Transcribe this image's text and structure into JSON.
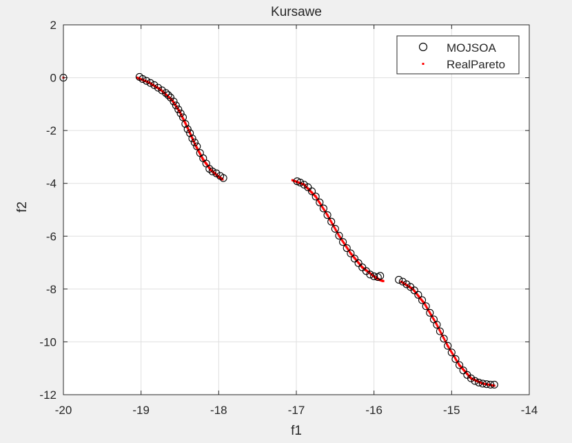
{
  "chart_data": {
    "type": "scatter",
    "title": "Kursawe",
    "xlabel": "f1",
    "ylabel": "f2",
    "xlim": [
      -20,
      -14
    ],
    "ylim": [
      -12,
      2
    ],
    "xticks": [
      -20,
      -19,
      -18,
      -17,
      -16,
      -15,
      -14
    ],
    "yticks": [
      -12,
      -10,
      -8,
      -6,
      -4,
      -2,
      0,
      2
    ],
    "xtick_labels": [
      "-20",
      "-19",
      "-18",
      "-17",
      "-16",
      "-15",
      "-14"
    ],
    "ytick_labels": [
      "-12",
      "-10",
      "-8",
      "-6",
      "-4",
      "-2",
      "0",
      "2"
    ],
    "grid": true,
    "legend_position": "top-right",
    "series": [
      {
        "name": "MOJSOA",
        "marker": "open-circle",
        "color": "#000000",
        "points": [
          [
            -20.0,
            0.0
          ],
          [
            -19.02,
            0.03
          ],
          [
            -18.98,
            -0.05
          ],
          [
            -18.93,
            -0.12
          ],
          [
            -18.88,
            -0.2
          ],
          [
            -18.83,
            -0.28
          ],
          [
            -18.78,
            -0.38
          ],
          [
            -18.73,
            -0.48
          ],
          [
            -18.68,
            -0.58
          ],
          [
            -18.65,
            -0.66
          ],
          [
            -18.62,
            -0.75
          ],
          [
            -18.58,
            -0.9
          ],
          [
            -18.55,
            -1.05
          ],
          [
            -18.52,
            -1.2
          ],
          [
            -18.49,
            -1.35
          ],
          [
            -18.46,
            -1.5
          ],
          [
            -18.43,
            -1.75
          ],
          [
            -18.4,
            -1.95
          ],
          [
            -18.37,
            -2.1
          ],
          [
            -18.34,
            -2.3
          ],
          [
            -18.31,
            -2.45
          ],
          [
            -18.28,
            -2.6
          ],
          [
            -18.24,
            -2.85
          ],
          [
            -18.2,
            -3.05
          ],
          [
            -18.16,
            -3.25
          ],
          [
            -18.12,
            -3.45
          ],
          [
            -18.08,
            -3.55
          ],
          [
            -18.03,
            -3.62
          ],
          [
            -17.98,
            -3.72
          ],
          [
            -17.94,
            -3.8
          ],
          [
            -16.99,
            -3.92
          ],
          [
            -16.95,
            -3.97
          ],
          [
            -16.9,
            -4.05
          ],
          [
            -16.85,
            -4.15
          ],
          [
            -16.8,
            -4.3
          ],
          [
            -16.75,
            -4.5
          ],
          [
            -16.7,
            -4.72
          ],
          [
            -16.65,
            -4.95
          ],
          [
            -16.6,
            -5.2
          ],
          [
            -16.55,
            -5.45
          ],
          [
            -16.5,
            -5.72
          ],
          [
            -16.45,
            -5.98
          ],
          [
            -16.4,
            -6.22
          ],
          [
            -16.35,
            -6.45
          ],
          [
            -16.3,
            -6.65
          ],
          [
            -16.25,
            -6.85
          ],
          [
            -16.2,
            -7.02
          ],
          [
            -16.15,
            -7.18
          ],
          [
            -16.1,
            -7.32
          ],
          [
            -16.05,
            -7.45
          ],
          [
            -16.0,
            -7.52
          ],
          [
            -15.95,
            -7.55
          ],
          [
            -15.92,
            -7.5
          ],
          [
            -15.68,
            -7.65
          ],
          [
            -15.63,
            -7.72
          ],
          [
            -15.58,
            -7.82
          ],
          [
            -15.53,
            -7.92
          ],
          [
            -15.48,
            -8.05
          ],
          [
            -15.43,
            -8.22
          ],
          [
            -15.38,
            -8.42
          ],
          [
            -15.33,
            -8.65
          ],
          [
            -15.28,
            -8.9
          ],
          [
            -15.23,
            -9.15
          ],
          [
            -15.19,
            -9.35
          ],
          [
            -15.15,
            -9.6
          ],
          [
            -15.1,
            -9.88
          ],
          [
            -15.05,
            -10.15
          ],
          [
            -15.0,
            -10.4
          ],
          [
            -14.95,
            -10.65
          ],
          [
            -14.9,
            -10.88
          ],
          [
            -14.85,
            -11.08
          ],
          [
            -14.8,
            -11.25
          ],
          [
            -14.75,
            -11.38
          ],
          [
            -14.7,
            -11.48
          ],
          [
            -14.65,
            -11.54
          ],
          [
            -14.6,
            -11.58
          ],
          [
            -14.55,
            -11.6
          ],
          [
            -14.5,
            -11.62
          ],
          [
            -14.45,
            -11.62
          ]
        ]
      },
      {
        "name": "RealPareto",
        "marker": "dot",
        "color": "#ff0000",
        "segments": [
          [
            [
              -19.05,
              0.0
            ],
            [
              -18.9,
              -0.18
            ],
            [
              -18.75,
              -0.45
            ],
            [
              -18.6,
              -0.85
            ],
            [
              -18.5,
              -1.3
            ],
            [
              -18.4,
              -1.9
            ],
            [
              -18.3,
              -2.55
            ],
            [
              -18.2,
              -3.1
            ],
            [
              -18.1,
              -3.5
            ],
            [
              -18.0,
              -3.75
            ],
            [
              -17.95,
              -3.85
            ]
          ],
          [
            [
              -17.05,
              -3.88
            ],
            [
              -16.9,
              -4.05
            ],
            [
              -16.75,
              -4.5
            ],
            [
              -16.6,
              -5.2
            ],
            [
              -16.45,
              -5.98
            ],
            [
              -16.3,
              -6.65
            ],
            [
              -16.15,
              -7.18
            ],
            [
              -16.0,
              -7.52
            ],
            [
              -15.93,
              -7.65
            ],
            [
              -15.88,
              -7.7
            ]
          ],
          [
            [
              -15.65,
              -7.72
            ],
            [
              -15.5,
              -8.0
            ],
            [
              -15.35,
              -8.55
            ],
            [
              -15.2,
              -9.3
            ],
            [
              -15.05,
              -10.15
            ],
            [
              -14.9,
              -10.88
            ],
            [
              -14.75,
              -11.38
            ],
            [
              -14.6,
              -11.58
            ],
            [
              -14.45,
              -11.66
            ]
          ]
        ]
      }
    ]
  }
}
